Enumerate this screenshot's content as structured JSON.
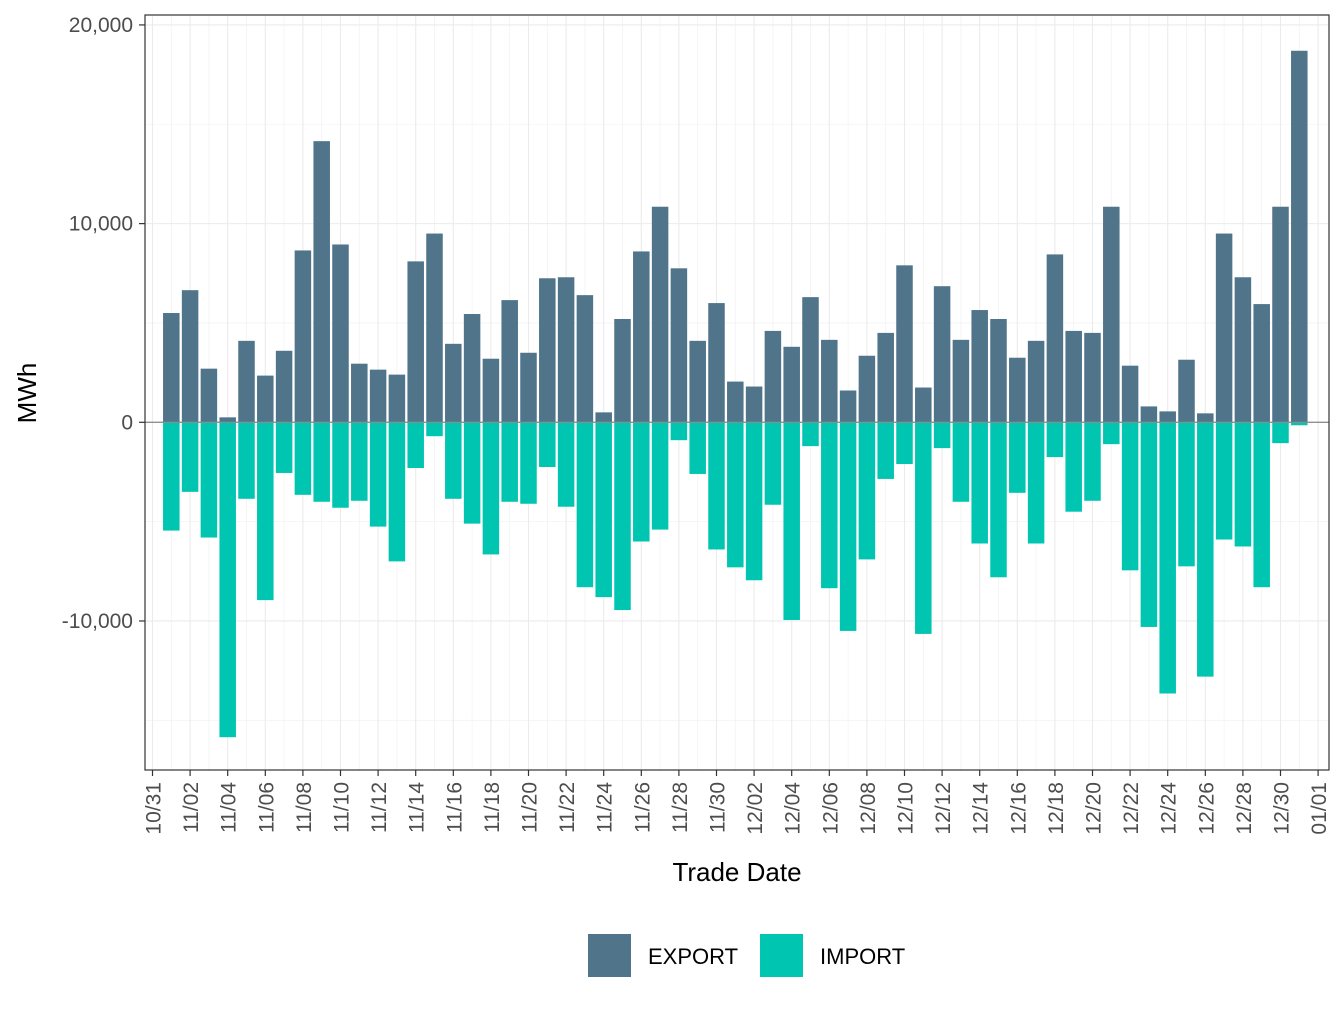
{
  "chart_data": {
    "type": "bar",
    "xlabel": "Trade Date",
    "ylabel": "MWh",
    "ylim": [
      -17500,
      20500
    ],
    "y_ticks": [
      -10000,
      0,
      10000,
      20000
    ],
    "y_tick_labels": [
      "-10,000",
      "0",
      "10,000",
      "20,000"
    ],
    "x_tick_labels": [
      "10/31",
      "11/02",
      "11/04",
      "11/06",
      "11/08",
      "11/10",
      "11/12",
      "11/14",
      "11/16",
      "11/18",
      "11/20",
      "11/22",
      "11/24",
      "11/26",
      "11/28",
      "11/30",
      "12/02",
      "12/04",
      "12/06",
      "12/08",
      "12/10",
      "12/12",
      "12/14",
      "12/16",
      "12/18",
      "12/20",
      "12/22",
      "12/24",
      "12/26",
      "12/28",
      "12/30",
      "01/01"
    ],
    "categories": [
      "11/01",
      "11/02",
      "11/03",
      "11/04",
      "11/05",
      "11/06",
      "11/07",
      "11/08",
      "11/09",
      "11/10",
      "11/11",
      "11/12",
      "11/13",
      "11/14",
      "11/15",
      "11/16",
      "11/17",
      "11/18",
      "11/19",
      "11/20",
      "11/21",
      "11/22",
      "11/23",
      "11/24",
      "11/25",
      "11/26",
      "11/27",
      "11/28",
      "11/29",
      "11/30",
      "12/01",
      "12/02",
      "12/03",
      "12/04",
      "12/05",
      "12/06",
      "12/07",
      "12/08",
      "12/09",
      "12/10",
      "12/11",
      "12/12",
      "12/13",
      "12/14",
      "12/15",
      "12/16",
      "12/17",
      "12/18",
      "12/19",
      "12/20",
      "12/21",
      "12/22",
      "12/23",
      "12/24",
      "12/25",
      "12/26",
      "12/27",
      "12/28",
      "12/29",
      "12/30",
      "12/31"
    ],
    "series": [
      {
        "name": "EXPORT",
        "color": "#50748a",
        "values": [
          5500,
          6650,
          2700,
          250,
          4100,
          2350,
          3600,
          8650,
          14150,
          8950,
          2950,
          2650,
          2400,
          8100,
          9500,
          3950,
          5450,
          3200,
          6150,
          3500,
          7250,
          7300,
          6400,
          500,
          5200,
          8600,
          10850,
          7750,
          4100,
          6000,
          2050,
          1800,
          4600,
          3800,
          6300,
          4150,
          1600,
          3350,
          4500,
          7900,
          1750,
          6850,
          4150,
          5650,
          5200,
          3250,
          4100,
          8450,
          4600,
          4500,
          10850,
          2850,
          800,
          550,
          3150,
          450,
          9500,
          7300,
          5950,
          10850,
          18700
        ]
      },
      {
        "name": "IMPORT",
        "color": "#00c5b0",
        "values": [
          -5450,
          -3500,
          -5800,
          -15850,
          -3850,
          -8950,
          -2550,
          -3650,
          -4000,
          -4300,
          -3950,
          -5250,
          -7000,
          -2300,
          -700,
          -3850,
          -5100,
          -6650,
          -4000,
          -4100,
          -2250,
          -4250,
          -8300,
          -8800,
          -9450,
          -6000,
          -5400,
          -900,
          -2600,
          -6400,
          -7300,
          -7950,
          -4150,
          -9950,
          -1200,
          -8350,
          -10500,
          -6900,
          -2850,
          -2100,
          -10650,
          -1300,
          -4000,
          -6100,
          -7800,
          -3550,
          -6100,
          -1750,
          -4500,
          -3950,
          -1100,
          -7450,
          -10300,
          -13650,
          -7250,
          -12800,
          -5900,
          -6250,
          -8300,
          -1050,
          -150
        ]
      }
    ],
    "legend": {
      "position": "bottom",
      "entries": [
        "EXPORT",
        "IMPORT"
      ]
    },
    "grid": true
  }
}
